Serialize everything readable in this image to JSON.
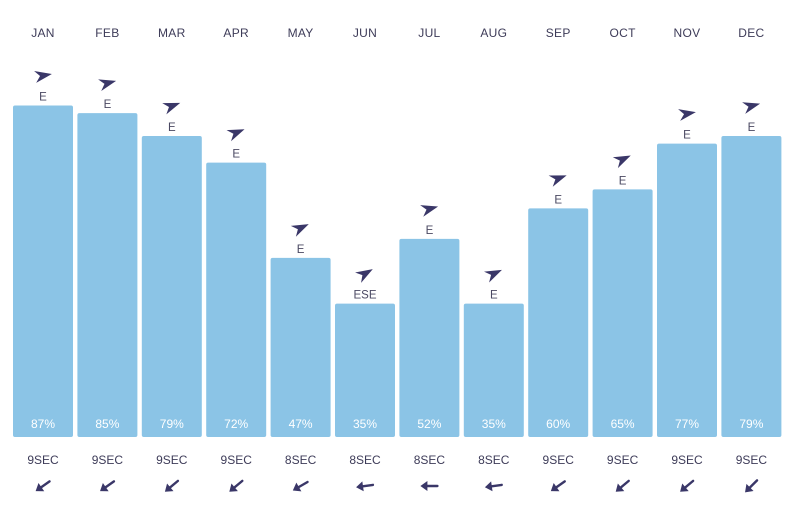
{
  "chart_data": {
    "type": "bar",
    "categories": [
      "JAN",
      "FEB",
      "MAR",
      "APR",
      "MAY",
      "JUN",
      "JUL",
      "AUG",
      "SEP",
      "OCT",
      "NOV",
      "DEC"
    ],
    "values": [
      87,
      85,
      79,
      72,
      47,
      35,
      52,
      35,
      60,
      65,
      77,
      79
    ],
    "value_labels": [
      "87%",
      "85%",
      "79%",
      "72%",
      "47%",
      "35%",
      "52%",
      "35%",
      "60%",
      "65%",
      "77%",
      "79%"
    ],
    "directions": [
      "E",
      "E",
      "E",
      "E",
      "E",
      "ESE",
      "E",
      "E",
      "E",
      "E",
      "E",
      "E"
    ],
    "direction_arrow_angles_deg": [
      170,
      165,
      160,
      158,
      155,
      150,
      165,
      155,
      160,
      155,
      170,
      165
    ],
    "periods": [
      "9SEC",
      "9SEC",
      "9SEC",
      "9SEC",
      "8SEC",
      "8SEC",
      "8SEC",
      "8SEC",
      "9SEC",
      "9SEC",
      "9SEC",
      "9SEC"
    ],
    "period_arrow_angles_deg": [
      145,
      145,
      140,
      140,
      150,
      172,
      180,
      172,
      145,
      140,
      140,
      135
    ],
    "ylim": [
      0,
      100
    ],
    "grid": false,
    "bar_color": "#8bc4e6",
    "arrow_color": "#3a3768"
  }
}
